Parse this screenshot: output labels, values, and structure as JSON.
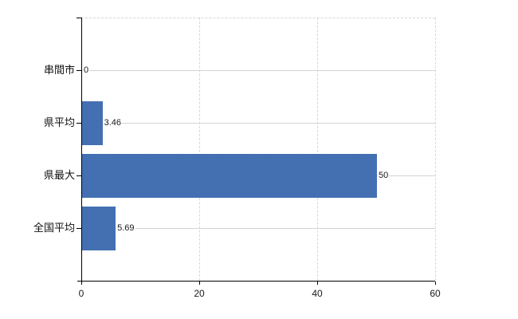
{
  "chart_data": {
    "type": "bar",
    "orientation": "horizontal",
    "title": "",
    "xlabel": "",
    "ylabel": "",
    "categories": [
      "串間市",
      "県平均",
      "県最大",
      "全国平均"
    ],
    "values": [
      0,
      3.46,
      50,
      5.69
    ],
    "value_labels": [
      "0",
      "3.46",
      "50",
      "5.69"
    ],
    "xlim": [
      0,
      60
    ],
    "x_ticks": [
      0,
      20,
      40,
      60
    ],
    "x_tick_labels": [
      "0",
      "20",
      "40",
      "60"
    ],
    "grid": true,
    "legend": false,
    "colors": {
      "bar": "#3e6db0",
      "horizontal_gridline": "#cfd7cf",
      "vertical_gridline": "#d6d6d6",
      "axis": "#000000",
      "label_text": "#1a1a1a",
      "background": "#ffffff"
    }
  }
}
